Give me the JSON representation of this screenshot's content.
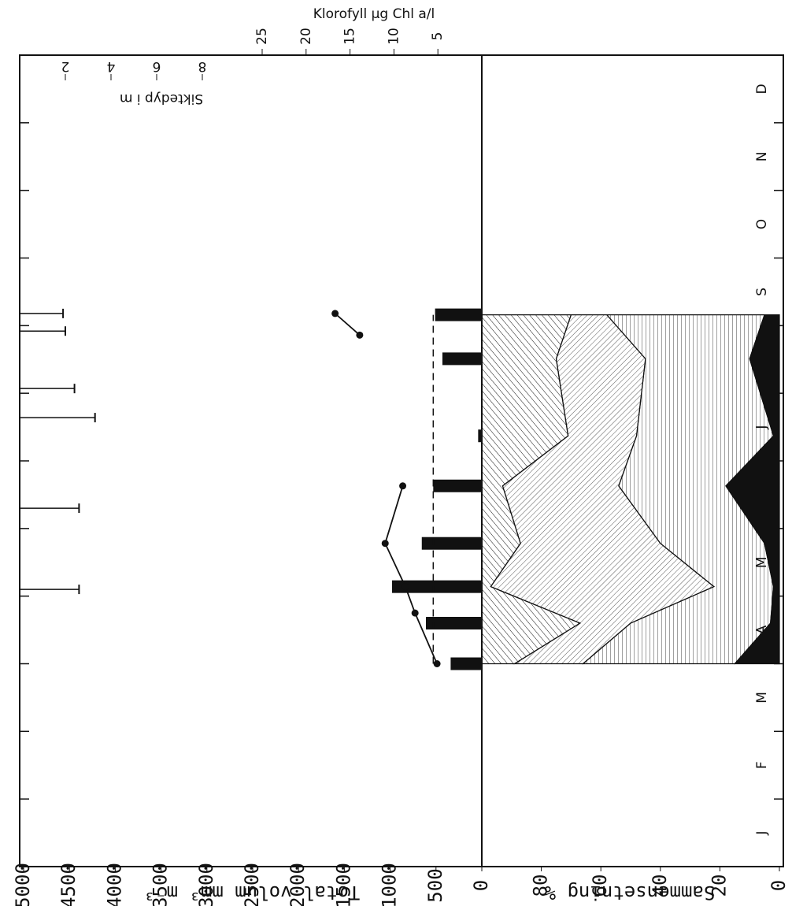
{
  "chart_data": [
    {
      "type": "bar",
      "axis_label": "Total volum mm³ m⁻³",
      "categories": [
        "J",
        "F",
        "M",
        "A",
        "M",
        "J",
        "J",
        "A",
        "S",
        "O",
        "N",
        "D"
      ],
      "xlim": [
        0,
        12
      ],
      "x": [
        3.0,
        3.6,
        4.14,
        4.78,
        5.63,
        6.37,
        7.51,
        8.16
      ],
      "values": [
        340,
        610,
        980,
        655,
        530,
        40,
        430,
        510
      ],
      "color": "#111111",
      "reference_line": 530,
      "ylim": [
        0,
        5000
      ],
      "yticks": [
        0,
        500,
        1000,
        1500,
        2000,
        2500,
        3000,
        3500,
        4000,
        4500,
        5000
      ]
    },
    {
      "type": "line",
      "axis_label": "Klorofyll µg Chl a/l",
      "series": [
        {
          "x": [
            3.0,
            3.75,
            4.14,
            4.78,
            5.63
          ],
          "values": [
            5.1,
            7.6,
            8.7,
            11.0,
            9.0
          ]
        },
        {
          "x": [
            7.86,
            8.18
          ],
          "values": [
            13.9,
            16.7
          ]
        }
      ],
      "color": "#111111",
      "ylim": [
        0,
        25
      ],
      "yticks": [
        5,
        10,
        15,
        20,
        25
      ]
    },
    {
      "type": "rule",
      "axis_label": "Siktedyp i m",
      "x": [
        4.1,
        5.3,
        6.64,
        7.07,
        7.92,
        8.18
      ],
      "values": [
        2.6,
        2.6,
        3.3,
        2.4,
        2.0,
        1.9
      ],
      "ylim": [
        0,
        8
      ],
      "yticks": [
        2,
        4,
        6,
        8
      ]
    },
    {
      "type": "stacked_area",
      "axis_label": "Sammensetning %",
      "x": [
        3.0,
        3.6,
        4.14,
        4.78,
        5.63,
        6.37,
        7.51,
        8.16
      ],
      "series": [
        {
          "pattern": "solid",
          "values": [
            15,
            3,
            2,
            5,
            18,
            2,
            10,
            5
          ]
        },
        {
          "pattern": "vertical",
          "values": [
            51,
            47,
            20,
            35,
            36,
            46,
            35,
            53
          ]
        },
        {
          "pattern": "fine-diagonal",
          "values": [
            23,
            17,
            75,
            47,
            39,
            23,
            30,
            12
          ]
        },
        {
          "pattern": "coarse-diagonal",
          "values": [
            11,
            33,
            3,
            13,
            7,
            29,
            25,
            30
          ]
        }
      ],
      "ylim": [
        0,
        100
      ],
      "yticks": [
        0,
        20,
        40,
        60,
        80
      ]
    }
  ]
}
